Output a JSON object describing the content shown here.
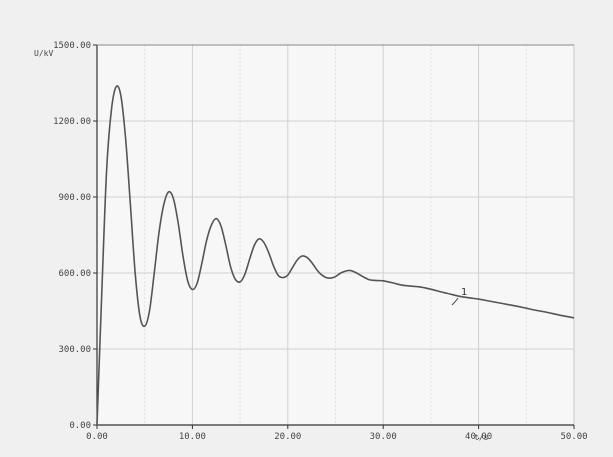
{
  "chart_data": {
    "type": "line",
    "title": "",
    "xlabel": "",
    "ylabel": "",
    "x_unit_label": "t/s",
    "y_unit_label": "U/kV",
    "xlim": [
      0,
      50
    ],
    "ylim": [
      0,
      1500
    ],
    "x_tick_values": [
      0,
      10,
      20,
      30,
      40,
      50
    ],
    "x_tick_labels": [
      "0.00",
      "10.00",
      "20.00",
      "30.00",
      "40.00",
      "50.00"
    ],
    "y_tick_values": [
      0,
      300,
      600,
      900,
      1200,
      1500
    ],
    "y_tick_labels": [
      "0.00",
      "300.00",
      "600.00",
      "900.00",
      "1200.00",
      "1500.00"
    ],
    "grid": true,
    "legend": "none",
    "annotation": "1",
    "series": [
      {
        "color": "#555555",
        "x": [
          0,
          0.5,
          1,
          1.5,
          2,
          2.5,
          3,
          3.5,
          4,
          4.5,
          5,
          5.5,
          6,
          6.5,
          7,
          7.5,
          8,
          8.5,
          9,
          9.5,
          10,
          10.5,
          11,
          11.5,
          12,
          12.5,
          13,
          13.5,
          14,
          14.5,
          15,
          15.5,
          16,
          16.5,
          17,
          17.5,
          18,
          18.5,
          19,
          19.5,
          20,
          20.5,
          21,
          21.5,
          22,
          22.5,
          23,
          23.5,
          24,
          24.5,
          25,
          25.5,
          26,
          26.5,
          27,
          27.5,
          28,
          28.5,
          29,
          29.5,
          30,
          31,
          32,
          33,
          34,
          35,
          36,
          37,
          38,
          39,
          40,
          41,
          42,
          43,
          44,
          45,
          46,
          47,
          48,
          49,
          50
        ],
        "y": [
          0,
          520,
          1000,
          1240,
          1335,
          1300,
          1130,
          870,
          600,
          430,
          390,
          450,
          600,
          760,
          870,
          920,
          895,
          800,
          670,
          570,
          535,
          560,
          640,
          730,
          790,
          815,
          785,
          710,
          625,
          575,
          565,
          595,
          655,
          710,
          735,
          720,
          680,
          628,
          590,
          582,
          592,
          622,
          652,
          667,
          662,
          642,
          615,
          594,
          582,
          580,
          586,
          599,
          607,
          610,
          604,
          594,
          583,
          574,
          571,
          570,
          569,
          561,
          552,
          548,
          544,
          536,
          526,
          517,
          508,
          502,
          497,
          490,
          483,
          476,
          469,
          461,
          453,
          446,
          438,
          430,
          423
        ]
      }
    ]
  }
}
